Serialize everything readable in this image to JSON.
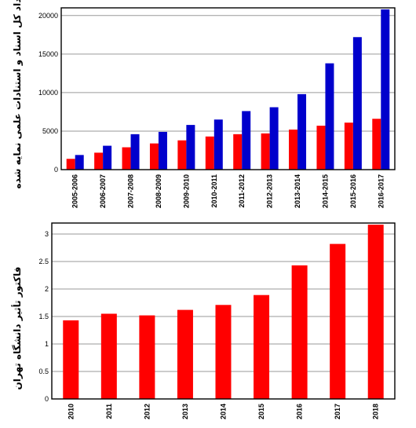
{
  "chart_data": [
    {
      "type": "bar",
      "ylabel": "تعداد کل اسناد و استنادات علمی نمایه شده",
      "categories": [
        "2005-2006",
        "2006-2007",
        "2007-2008",
        "2008-2009",
        "2009-2010",
        "2010-2011",
        "2011-2012",
        "2012-2013",
        "2013-2014",
        "2014-2015",
        "2015-2016",
        "2016-2017"
      ],
      "series": [
        {
          "values": [
            1400,
            2200,
            2900,
            3400,
            3800,
            4300,
            4600,
            4700,
            5200,
            5700,
            6100,
            6600
          ],
          "color": "#ff0000"
        },
        {
          "values": [
            1900,
            3100,
            4600,
            4900,
            5800,
            6500,
            7600,
            8100,
            9800,
            13800,
            17200,
            20800
          ],
          "color": "#0000cc"
        }
      ],
      "ylim": [
        0,
        21000
      ],
      "yticks": [
        "0",
        "5000",
        "10000",
        "15000",
        "20000"
      ],
      "grid": true,
      "legend": "none"
    },
    {
      "type": "bar",
      "ylabel": "فاکتور تأثیر دانشگاه تهران",
      "categories": [
        "2010",
        "2011",
        "2012",
        "2013",
        "2014",
        "2015",
        "2016",
        "2017",
        "2018"
      ],
      "series": [
        {
          "values": [
            1.43,
            1.55,
            1.52,
            1.62,
            1.71,
            1.89,
            2.43,
            2.82,
            3.17
          ],
          "color": "#ff0000"
        }
      ],
      "ylim": [
        0,
        3.2
      ],
      "yticks": [
        "0",
        "0.5",
        "1",
        "1.5",
        "2",
        "2.5",
        "3"
      ],
      "grid": true,
      "legend": "none"
    }
  ]
}
